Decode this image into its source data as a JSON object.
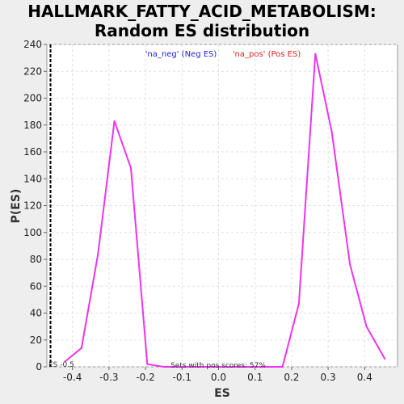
{
  "chart_data": {
    "type": "line",
    "title_line1": "HALLMARK_FATTY_ACID_METABOLISM:",
    "title_line2": "Random ES distribution",
    "xlabel": "ES",
    "ylabel": "P(ES)",
    "xlim": [
      -0.47,
      0.49
    ],
    "ylim": [
      0,
      240
    ],
    "xticks": [
      "-0.4",
      "-0.3",
      "-0.2",
      "-0.1",
      "0.0",
      "0.1",
      "0.2",
      "0.3",
      "0.4"
    ],
    "xtick_values": [
      -0.4,
      -0.3,
      -0.2,
      -0.1,
      0.0,
      0.1,
      0.2,
      0.3,
      0.4
    ],
    "yticks": [
      "0",
      "20",
      "40",
      "60",
      "80",
      "100",
      "120",
      "140",
      "160",
      "180",
      "200",
      "220",
      "240"
    ],
    "ytick_values": [
      0,
      20,
      40,
      60,
      80,
      100,
      120,
      140,
      160,
      180,
      200,
      220,
      240
    ],
    "grid": true,
    "series": [
      {
        "color": "#ee33ee",
        "x": [
          -0.42,
          -0.375,
          -0.33,
          -0.285,
          -0.24,
          -0.195,
          -0.15,
          -0.105,
          -0.06,
          -0.015,
          0.03,
          0.075,
          0.12,
          0.175,
          0.22,
          0.265,
          0.31,
          0.36,
          0.405,
          0.455
        ],
        "y": [
          4,
          14,
          84,
          183,
          148,
          2,
          0,
          0,
          0,
          0,
          0,
          0,
          0,
          0,
          47,
          233,
          175,
          76,
          30,
          6
        ]
      }
    ],
    "vline_x": -0.46,
    "legend_neg": "'na_neg' (Neg ES)",
    "legend_pos": "'na_pos' (Pos ES)",
    "legend_neg_color": "#2222dd",
    "legend_pos_color": "#dd2222",
    "annotation_es": "ES -0.5",
    "annotation_sets": "Sets with pos scores: 57%"
  }
}
